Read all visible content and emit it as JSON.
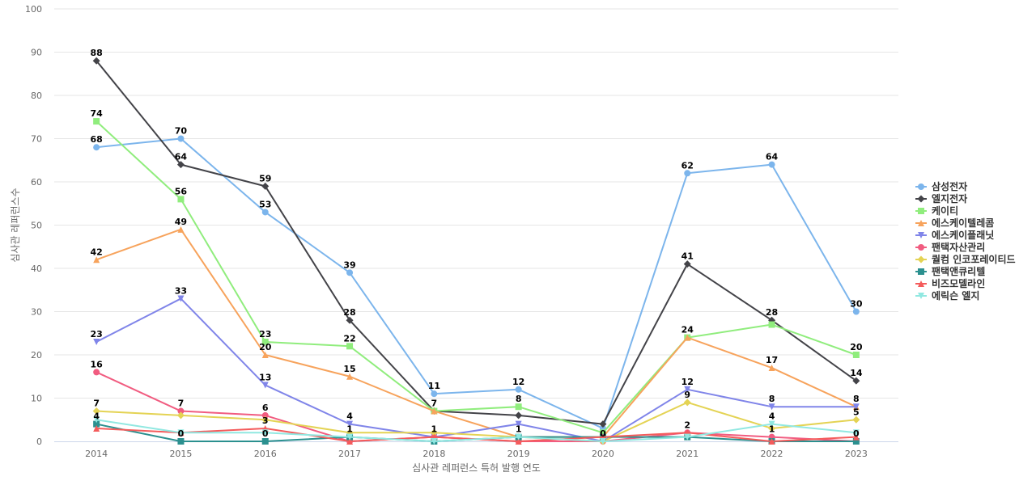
{
  "chart_data": {
    "type": "line",
    "xlabel": "심사관 레퍼런스 특허 발행 연도",
    "ylabel": "심사관 레퍼런스수",
    "ylim": [
      0,
      100
    ],
    "yticks": [
      "0",
      "10",
      "20",
      "30",
      "40",
      "50",
      "60",
      "70",
      "80",
      "90",
      "100"
    ],
    "categories": [
      "2014",
      "2015",
      "2016",
      "2017",
      "2018",
      "2019",
      "2020",
      "2021",
      "2022",
      "2023"
    ],
    "grid": true,
    "legend_position": "right",
    "series": [
      {
        "name": "삼성전자",
        "color": "#7cb5ec",
        "marker": "circle",
        "values": [
          68,
          70,
          53,
          39,
          11,
          12,
          3,
          62,
          64,
          30
        ],
        "labeled": [
          true,
          true,
          true,
          true,
          true,
          true,
          false,
          true,
          true,
          true
        ]
      },
      {
        "name": "엘지전자",
        "color": "#434348",
        "marker": "diamond",
        "values": [
          88,
          64,
          59,
          28,
          7,
          6,
          4,
          41,
          28,
          14
        ],
        "labeled": [
          true,
          true,
          true,
          true,
          false,
          false,
          false,
          true,
          true,
          true
        ]
      },
      {
        "name": "케이티",
        "color": "#90ed7d",
        "marker": "square",
        "values": [
          74,
          56,
          23,
          22,
          7,
          8,
          2,
          24,
          27,
          20
        ],
        "labeled": [
          true,
          true,
          true,
          true,
          false,
          true,
          false,
          false,
          false,
          true
        ]
      },
      {
        "name": "에스케이텔레콤",
        "color": "#f7a35c",
        "marker": "triangle",
        "values": [
          42,
          49,
          20,
          15,
          7,
          1,
          1,
          24,
          17,
          8
        ],
        "labeled": [
          true,
          true,
          true,
          true,
          true,
          false,
          false,
          true,
          true,
          false
        ]
      },
      {
        "name": "에스케이플래닛",
        "color": "#8085e9",
        "marker": "triangle-down",
        "values": [
          23,
          33,
          13,
          4,
          1,
          4,
          0,
          12,
          8,
          8
        ],
        "labeled": [
          true,
          true,
          true,
          true,
          false,
          false,
          false,
          true,
          true,
          true
        ]
      },
      {
        "name": "팬택자산관리",
        "color": "#f15c80",
        "marker": "circle",
        "values": [
          16,
          7,
          6,
          0,
          1,
          0,
          0,
          2,
          1,
          0
        ],
        "labeled": [
          true,
          true,
          true,
          false,
          true,
          false,
          false,
          true,
          true,
          false
        ]
      },
      {
        "name": "퀄컴 인코포레이티드",
        "color": "#e4d354",
        "marker": "diamond",
        "values": [
          7,
          6,
          5,
          2,
          2,
          1,
          0,
          9,
          3,
          5
        ],
        "labeled": [
          true,
          false,
          false,
          false,
          false,
          false,
          true,
          true,
          false,
          true
        ]
      },
      {
        "name": "팬택앤큐리텔",
        "color": "#2b908f",
        "marker": "square",
        "values": [
          4,
          0,
          0,
          1,
          0,
          1,
          1,
          1,
          0,
          0
        ],
        "labeled": [
          true,
          true,
          true,
          true,
          false,
          true,
          false,
          false,
          false,
          true
        ]
      },
      {
        "name": "비즈모델라인",
        "color": "#f45b5b",
        "marker": "triangle",
        "values": [
          3,
          2,
          3,
          0,
          1,
          0,
          1,
          2,
          0,
          1
        ],
        "labeled": [
          false,
          false,
          true,
          false,
          false,
          false,
          false,
          false,
          false,
          false
        ]
      },
      {
        "name": "에릭슨 엘지",
        "color": "#91e8e1",
        "marker": "triangle-down",
        "values": [
          5,
          2,
          2,
          1,
          0,
          1,
          0,
          1,
          4,
          2
        ],
        "labeled": [
          false,
          false,
          false,
          false,
          false,
          false,
          false,
          false,
          true,
          false
        ]
      }
    ]
  }
}
